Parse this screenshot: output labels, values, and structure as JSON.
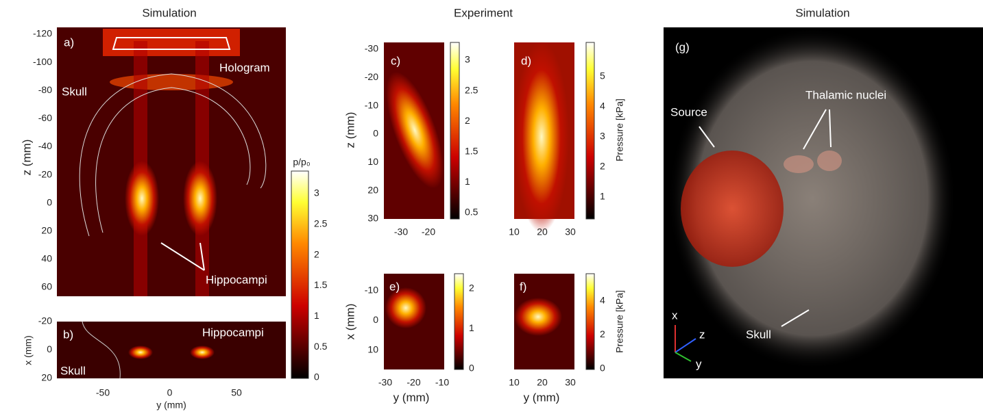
{
  "titles": {
    "left": "Simulation",
    "middle": "Experiment",
    "right": "Simulation"
  },
  "panel_a": {
    "label": "a)",
    "ylabel": "z (mm)",
    "yticks": [
      "-120",
      "-100",
      "-80",
      "-60",
      "-40",
      "-20",
      "0",
      "20",
      "40",
      "60"
    ],
    "annotations": {
      "hologram": "Hologram",
      "skull": "Skull",
      "hippocampi": "Hippocampi"
    }
  },
  "panel_b": {
    "label": "b)",
    "ylabel": "x (mm)",
    "xlabel": "y (mm)",
    "yticks": [
      "-20",
      "0",
      "20"
    ],
    "xticks": [
      "-50",
      "0",
      "50"
    ],
    "annotations": {
      "hippocampi": "Hippocampi",
      "skull": "Skull"
    }
  },
  "colorbar_ab": {
    "label": "p/p₀",
    "ticks": [
      "3",
      "2.5",
      "2",
      "1.5",
      "1",
      "0.5",
      "0"
    ]
  },
  "panel_c": {
    "label": "c)",
    "ylabel": "z (mm)",
    "yticks": [
      "-30",
      "-20",
      "-10",
      "0",
      "10",
      "20",
      "30"
    ],
    "xticks": [
      "-30",
      "-20"
    ],
    "colorbar": [
      "3",
      "2.5",
      "2",
      "1.5",
      "1",
      "0.5"
    ]
  },
  "panel_d": {
    "label": "d)",
    "xticks": [
      "10",
      "20",
      "30"
    ],
    "colorbar": [
      "5",
      "4",
      "3",
      "2",
      "1"
    ],
    "colorbar_label": "Pressure [kPa]"
  },
  "panel_e": {
    "label": "e)",
    "ylabel": "x (mm)",
    "xlabel": "y (mm)",
    "yticks": [
      "-10",
      "0",
      "10"
    ],
    "xticks": [
      "-30",
      "-20",
      "-10"
    ],
    "colorbar": [
      "2",
      "1",
      "0"
    ]
  },
  "panel_f": {
    "label": "f)",
    "xlabel": "y (mm)",
    "xticks": [
      "10",
      "20",
      "30"
    ],
    "colorbar": [
      "4",
      "2",
      "0"
    ],
    "colorbar_label": "Pressure [kPa]"
  },
  "panel_g": {
    "label": "(g)",
    "annotations": {
      "source": "Source",
      "thalamic": "Thalamic nuclei",
      "skull": "Skull"
    },
    "axes": {
      "x": "x",
      "z": "z",
      "y": "y"
    }
  }
}
